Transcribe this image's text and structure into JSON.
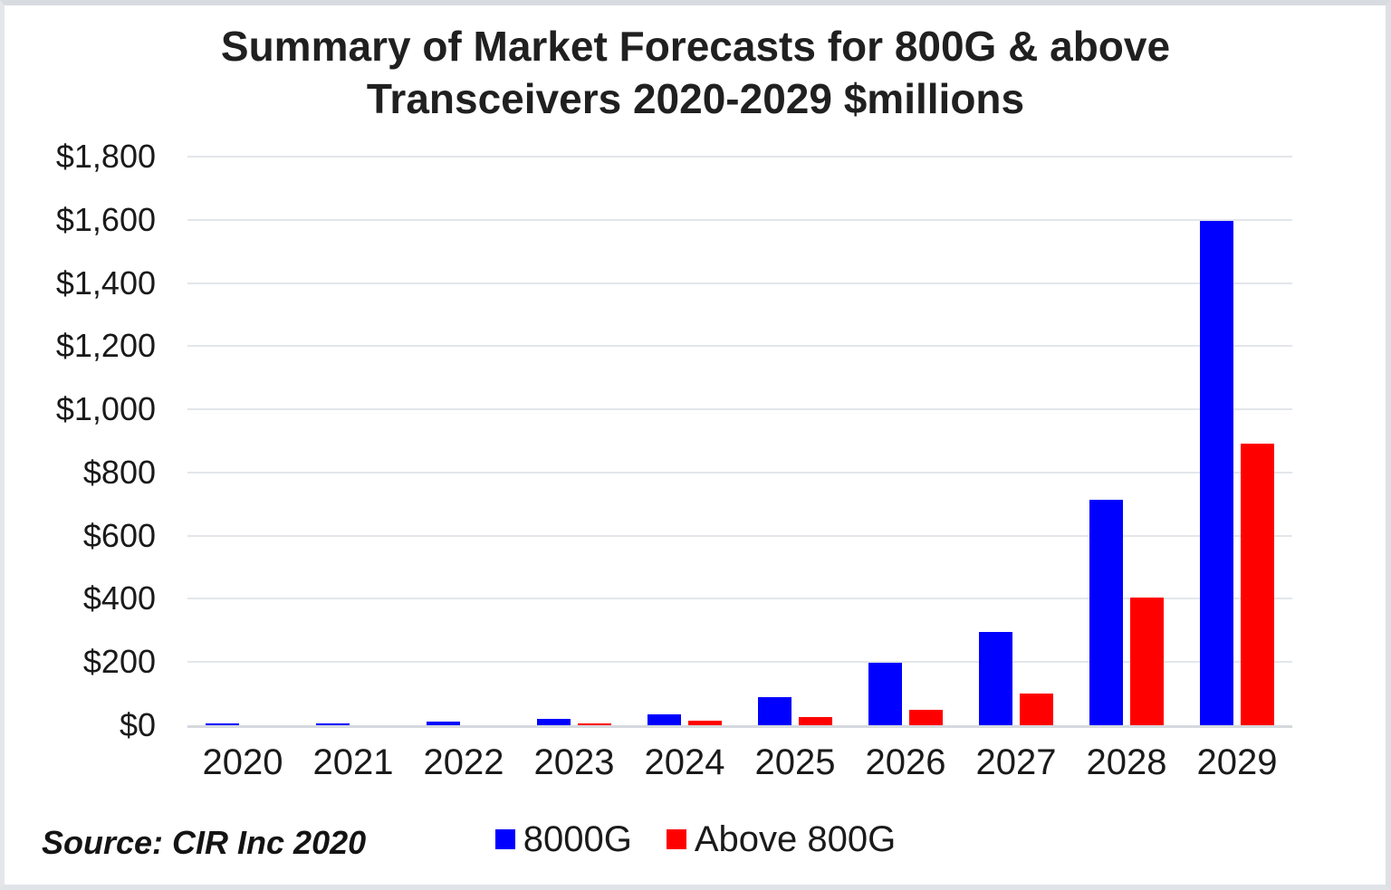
{
  "title": {
    "line1": "Summary of Market Forecasts for 800G & above",
    "line2": "Transceivers 2020-2029 $millions"
  },
  "footer": {
    "source": "Source: CIR Inc 2020"
  },
  "legend": {
    "items": [
      {
        "label": "8000G",
        "color": "#0000fe"
      },
      {
        "label": "Above 800G",
        "color": "#fe0000"
      }
    ]
  },
  "colors": {
    "blue_series": "#0000fe",
    "red_series": "#fe0000",
    "gridline": "#e3e6ea",
    "axis_line": "#d5d9de",
    "text": "#1a1a1a"
  },
  "chart_data": {
    "type": "bar",
    "title": "Summary of Market Forecasts for 800G & above Transceivers 2020-2029 $millions",
    "units": "$millions",
    "categories": [
      "2020",
      "2021",
      "2022",
      "2023",
      "2024",
      "2025",
      "2026",
      "2027",
      "2028",
      "2029"
    ],
    "series": [
      {
        "name": "8000G",
        "color": "#0000fe",
        "values": [
          6,
          6,
          12,
          19,
          35,
          88,
          198,
          294,
          714,
          1597
        ]
      },
      {
        "name": "Above 800G",
        "color": "#fe0000",
        "values": [
          0,
          0,
          0,
          6,
          13,
          26,
          48,
          100,
          405,
          890
        ]
      }
    ],
    "xlabel": "",
    "ylabel": "",
    "ylim": [
      0,
      1800
    ],
    "ytick_step": 200,
    "ytick_labels": [
      "$0",
      "$200",
      "$400",
      "$600",
      "$800",
      "$1,000",
      "$1,200",
      "$1,400",
      "$1,600",
      "$1,800"
    ],
    "grid": true,
    "legend_position": "bottom"
  }
}
